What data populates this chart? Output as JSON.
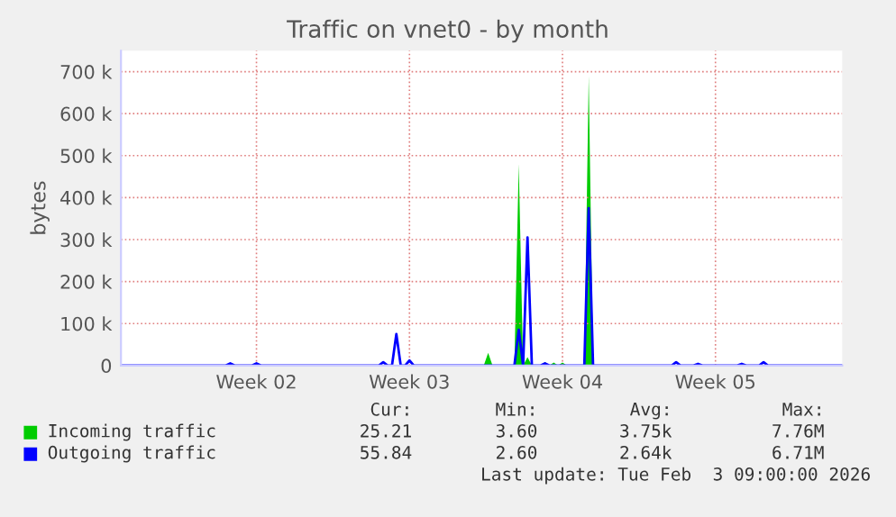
{
  "chart_data": {
    "type": "line",
    "title": "Traffic on vnet0 - by month",
    "ylabel": "bytes",
    "categories": [
      null,
      null,
      null,
      null,
      null,
      null,
      null,
      null,
      null,
      null,
      null,
      null,
      null,
      null,
      null,
      null,
      null,
      null,
      null,
      null,
      null,
      null,
      null,
      null,
      null,
      null,
      null,
      null,
      null,
      null,
      null,
      "Week 02",
      null,
      null,
      null,
      null,
      null,
      null,
      null,
      null,
      null,
      null,
      null,
      null,
      null,
      null,
      null,
      null,
      null,
      null,
      null,
      null,
      null,
      null,
      null,
      null,
      null,
      null,
      null,
      null,
      null,
      null,
      null,
      null,
      null,
      null,
      "Week 03",
      null,
      null,
      null,
      null,
      null,
      null,
      null,
      null,
      null,
      null,
      null,
      null,
      null,
      null,
      null,
      null,
      null,
      null,
      null,
      null,
      null,
      null,
      null,
      null,
      null,
      null,
      null,
      null,
      null,
      null,
      null,
      null,
      null,
      null,
      "Week 04",
      null,
      null,
      null,
      null,
      null,
      null,
      null,
      null,
      null,
      null,
      null,
      null,
      null,
      null,
      null,
      null,
      null,
      null,
      null,
      null,
      null,
      null,
      null,
      null,
      null,
      null,
      null,
      null,
      null,
      null,
      null,
      null,
      null,
      null,
      "Week 05",
      null,
      null,
      null,
      null,
      null,
      null,
      null,
      null,
      null,
      null,
      null,
      null,
      null,
      null,
      null,
      null,
      null,
      null,
      null,
      null,
      null,
      null,
      null,
      null,
      null,
      null,
      null,
      null,
      null
    ],
    "series": [
      {
        "name": "Incoming traffic",
        "type": "area",
        "color": "#00cc00",
        "values": [
          0,
          0,
          0,
          0,
          0,
          0,
          0,
          0,
          0,
          0,
          0,
          0,
          0,
          0,
          0,
          0,
          0,
          0,
          0,
          0,
          0,
          0,
          0,
          0,
          0,
          0,
          0,
          0,
          0,
          0,
          0,
          0,
          0,
          0,
          0,
          0,
          0,
          0,
          0,
          0,
          0,
          0,
          0,
          0,
          0,
          0,
          0,
          0,
          0,
          0,
          0,
          0,
          0,
          0,
          0,
          0,
          0,
          0,
          0,
          0,
          0,
          0,
          0,
          0,
          0,
          0,
          0,
          0,
          0,
          0,
          0,
          0,
          0,
          0,
          0,
          0,
          0,
          0,
          0,
          0,
          0,
          0,
          0,
          0,
          30000,
          0,
          0,
          0,
          0,
          0,
          0,
          480000,
          0,
          20000,
          0,
          0,
          0,
          8000,
          0,
          7000,
          0,
          7000,
          0,
          0,
          0,
          0,
          0,
          690000,
          0,
          0,
          0,
          0,
          0,
          0,
          0,
          0,
          0,
          0,
          0,
          0,
          0,
          0,
          0,
          0,
          0,
          0,
          0,
          0,
          0,
          0,
          0,
          0,
          0,
          0,
          0,
          0,
          0,
          0,
          0,
          0,
          0,
          0,
          0,
          0,
          0,
          0,
          0,
          0,
          0,
          0,
          0,
          0,
          0,
          0,
          0,
          0,
          0,
          0,
          0,
          0,
          0,
          0,
          0,
          0,
          0,
          0
        ]
      },
      {
        "name": "Outgoing traffic",
        "color": "#0000ff",
        "values": [
          0,
          0,
          0,
          0,
          0,
          0,
          0,
          0,
          0,
          0,
          0,
          0,
          0,
          0,
          0,
          0,
          0,
          0,
          0,
          0,
          0,
          0,
          0,
          0,
          0,
          5000,
          0,
          0,
          0,
          0,
          0,
          5000,
          0,
          0,
          0,
          0,
          0,
          0,
          0,
          0,
          0,
          0,
          0,
          0,
          0,
          0,
          0,
          0,
          0,
          0,
          0,
          0,
          0,
          0,
          0,
          0,
          0,
          0,
          0,
          0,
          8000,
          0,
          0,
          75000,
          0,
          0,
          12000,
          0,
          0,
          0,
          0,
          0,
          0,
          0,
          0,
          0,
          0,
          0,
          0,
          0,
          0,
          0,
          0,
          0,
          0,
          0,
          0,
          0,
          0,
          0,
          0,
          85000,
          0,
          305000,
          0,
          0,
          0,
          5000,
          0,
          0,
          0,
          0,
          0,
          0,
          0,
          0,
          0,
          375000,
          0,
          0,
          0,
          0,
          0,
          0,
          0,
          0,
          0,
          0,
          0,
          0,
          0,
          0,
          0,
          0,
          0,
          0,
          0,
          8000,
          0,
          0,
          0,
          0,
          4000,
          0,
          0,
          0,
          0,
          0,
          0,
          0,
          0,
          0,
          4000,
          0,
          0,
          0,
          0,
          8000,
          0,
          0,
          0,
          0,
          0,
          0,
          0,
          0,
          0,
          0,
          0,
          0,
          0,
          0,
          0,
          0,
          0,
          0
        ]
      }
    ],
    "ylim": [
      0,
      750000
    ],
    "yticks": [
      0,
      {
        "value": 100000,
        "label": "100 k"
      },
      {
        "value": 200000,
        "label": "200 k"
      },
      {
        "value": 300000,
        "label": "300 k"
      },
      {
        "value": 400000,
        "label": "400 k"
      },
      {
        "value": 500000,
        "label": "500 k"
      },
      {
        "value": 600000,
        "label": "600 k"
      },
      {
        "value": 700000,
        "label": "700 k"
      }
    ],
    "grid": true,
    "legend": "bottom",
    "annotations": [
      "Cur:",
      "Min:",
      "Avg:",
      "Max:",
      "25.21",
      "3.60",
      "3.75k",
      "7.76M",
      "55.84",
      "2.60",
      "2.64k",
      "6.71M",
      "Last update: Tue Feb  3 09:00:00 2026"
    ]
  }
}
